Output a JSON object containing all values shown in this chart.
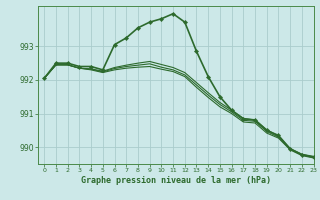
{
  "title": "Graphe pression niveau de la mer (hPa)",
  "bg_color": "#cce8e8",
  "plot_bg_color": "#cce8e8",
  "grid_color": "#aacccc",
  "line_color": "#2d6a2d",
  "xlim": [
    -0.5,
    23
  ],
  "ylim": [
    989.5,
    994.2
  ],
  "yticks": [
    990,
    991,
    992,
    993
  ],
  "xticks": [
    0,
    1,
    2,
    3,
    4,
    5,
    6,
    7,
    8,
    9,
    10,
    11,
    12,
    13,
    14,
    15,
    16,
    17,
    18,
    19,
    20,
    21,
    22,
    23
  ],
  "series": [
    {
      "x": [
        0,
        1,
        2,
        3,
        4,
        5,
        6,
        7,
        8,
        9,
        10,
        11,
        12,
        13,
        14,
        15,
        16,
        17,
        18,
        19,
        20,
        21,
        22,
        23
      ],
      "y": [
        992.05,
        992.5,
        992.5,
        992.4,
        992.4,
        992.3,
        993.05,
        993.25,
        993.55,
        993.72,
        993.82,
        993.97,
        993.72,
        992.85,
        992.1,
        991.5,
        991.1,
        990.85,
        990.8,
        990.5,
        990.35,
        989.95,
        989.78,
        989.72
      ],
      "marker": true,
      "linestyle": "-",
      "lw": 1.2
    },
    {
      "x": [
        0,
        1,
        2,
        3,
        4,
        5,
        6,
        7,
        8,
        9,
        10,
        11,
        12,
        13,
        14,
        15,
        16,
        17,
        18,
        19,
        20,
        21,
        22,
        23
      ],
      "y": [
        992.05,
        992.45,
        992.45,
        992.35,
        992.3,
        992.22,
        992.3,
        992.35,
        992.38,
        992.4,
        992.32,
        992.25,
        992.1,
        991.78,
        991.48,
        991.2,
        991.0,
        990.75,
        990.72,
        990.42,
        990.27,
        989.92,
        989.75,
        989.68
      ],
      "marker": false,
      "linestyle": "-",
      "lw": 0.8
    },
    {
      "x": [
        0,
        1,
        2,
        3,
        4,
        5,
        6,
        7,
        8,
        9,
        10,
        11,
        12,
        13,
        14,
        15,
        16,
        17,
        18,
        19,
        20,
        21,
        22,
        23
      ],
      "y": [
        992.05,
        992.45,
        992.45,
        992.35,
        992.32,
        992.24,
        992.34,
        992.4,
        992.44,
        992.48,
        992.38,
        992.3,
        992.15,
        991.85,
        991.55,
        991.27,
        991.05,
        990.8,
        990.77,
        990.47,
        990.3,
        989.94,
        989.77,
        989.69
      ],
      "marker": false,
      "linestyle": "-",
      "lw": 0.8
    },
    {
      "x": [
        0,
        1,
        2,
        3,
        4,
        5,
        6,
        7,
        8,
        9,
        10,
        11,
        12,
        13,
        14,
        15,
        16,
        17,
        18,
        19,
        20,
        21,
        22,
        23
      ],
      "y": [
        992.05,
        992.45,
        992.45,
        992.35,
        992.33,
        992.26,
        992.37,
        992.44,
        992.5,
        992.55,
        992.46,
        992.37,
        992.22,
        991.92,
        991.62,
        991.33,
        991.1,
        990.85,
        990.82,
        990.52,
        990.33,
        989.96,
        989.79,
        989.71
      ],
      "marker": false,
      "linestyle": "-",
      "lw": 0.8
    }
  ]
}
